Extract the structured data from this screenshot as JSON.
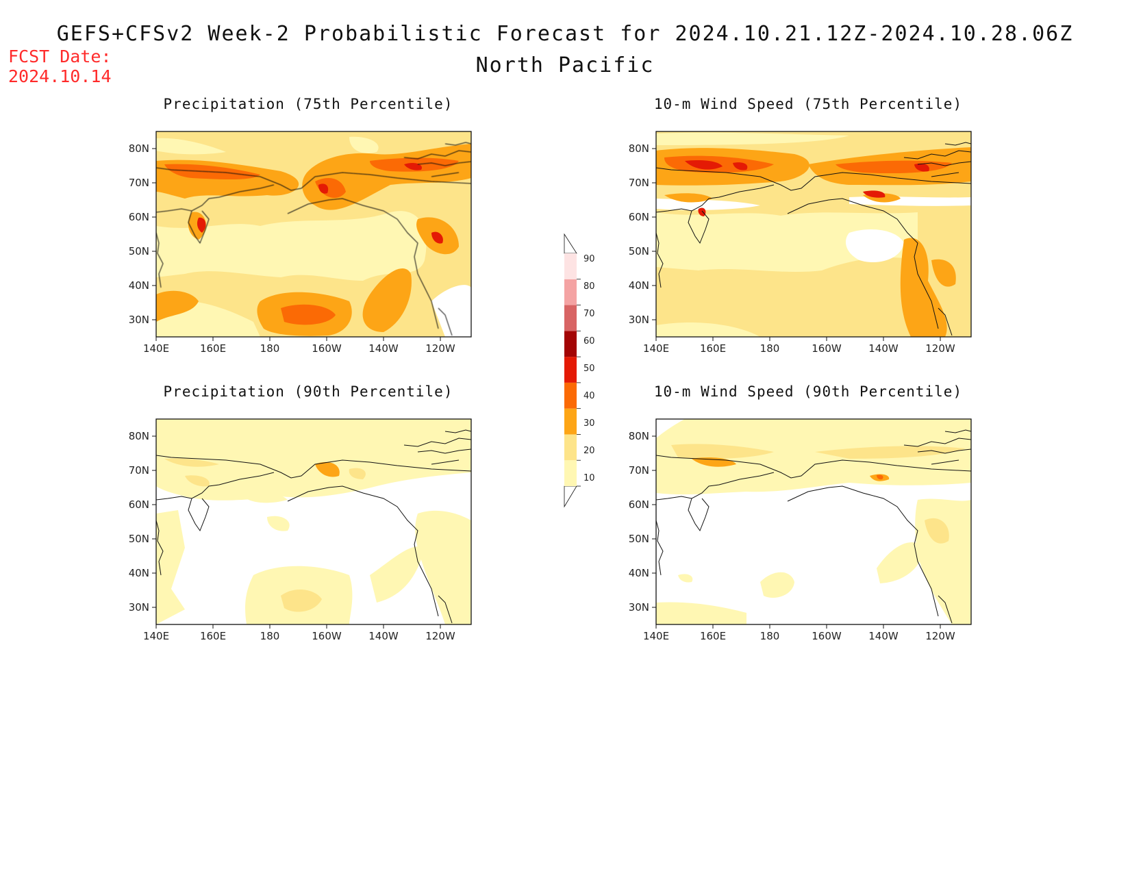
{
  "header": {
    "fcst_label": "FCST Date:",
    "fcst_date": "2024.10.14",
    "title": "GEFS+CFSv2 Week-2 Probabilistic Forecast for 2024.10.21.12Z-2024.10.28.06Z",
    "subtitle": "North Pacific"
  },
  "axes": {
    "lon_ticks": [
      "140E",
      "160E",
      "180",
      "160W",
      "140W",
      "120W"
    ],
    "lat_ticks": [
      "80N",
      "70N",
      "60N",
      "50N",
      "40N",
      "30N"
    ]
  },
  "panels": [
    {
      "title": "Precipitation (75th Percentile)",
      "variable": "precipitation",
      "percentile": 75
    },
    {
      "title": "10-m Wind Speed (75th Percentile)",
      "variable": "wind",
      "percentile": 75
    },
    {
      "title": "Precipitation (90th Percentile)",
      "variable": "precipitation",
      "percentile": 90
    },
    {
      "title": "10-m Wind Speed (90th Percentile)",
      "variable": "wind",
      "percentile": 90
    }
  ],
  "colorbar": {
    "levels": [
      "10",
      "20",
      "30",
      "40",
      "50",
      "60",
      "70",
      "80",
      "90"
    ],
    "colors": [
      "#fff7b3",
      "#fde48a",
      "#fda516",
      "#fb6a05",
      "#e41a05",
      "#a30505",
      "#d86464",
      "#f4a3a3",
      "#fde3e3"
    ]
  }
}
